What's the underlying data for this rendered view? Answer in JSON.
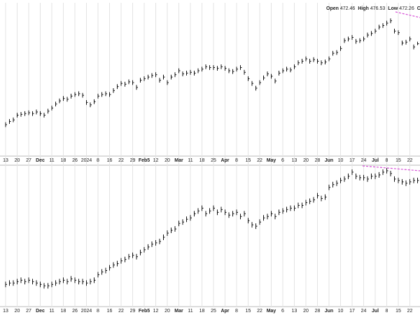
{
  "chart_data": [
    {
      "type": "ohlc",
      "header": [
        {
          "label": "Open",
          "value": 472.46
        },
        {
          "label": "High",
          "value": 476.53
        },
        {
          "label": "Low",
          "value": 472.26
        },
        {
          "label": "Close"
        }
      ],
      "categories": [
        "13",
        null,
        null,
        "20",
        null,
        null,
        "27",
        null,
        null,
        "Dec",
        null,
        null,
        "11",
        null,
        null,
        "18",
        null,
        null,
        "26",
        null,
        null,
        "2024",
        null,
        null,
        "8",
        null,
        null,
        "16",
        null,
        null,
        "22",
        null,
        null,
        "29",
        null,
        null,
        "Feb5",
        null,
        null,
        "12",
        null,
        null,
        "20",
        null,
        null,
        "Mar",
        null,
        null,
        "11",
        null,
        null,
        "18",
        null,
        null,
        "25",
        null,
        null,
        "Apr",
        null,
        null,
        "8",
        null,
        null,
        "15",
        null,
        null,
        "22",
        null,
        null,
        "May",
        null,
        null,
        "6",
        null,
        null,
        "13",
        null,
        null,
        "20",
        null,
        null,
        "28",
        null,
        null,
        "Jun",
        null,
        null,
        "10",
        null,
        null,
        "17",
        null,
        null,
        "24",
        null,
        null,
        "Jul",
        null,
        null,
        "8",
        null,
        null,
        "15",
        null,
        null,
        "22",
        null,
        null
      ],
      "high": [
        375,
        379,
        381,
        387,
        388,
        389,
        390,
        389,
        391,
        389,
        387,
        392,
        396,
        401,
        405,
        408,
        407,
        411,
        413,
        414,
        412,
        403,
        400,
        404,
        411,
        413,
        414,
        413,
        418,
        423,
        427,
        426,
        429,
        428,
        422,
        431,
        433,
        435,
        437,
        438,
        431,
        435,
        428,
        435,
        438,
        443,
        439,
        440,
        441,
        440,
        443,
        445,
        448,
        447,
        447,
        446,
        448,
        446,
        443,
        442,
        445,
        447,
        441,
        433,
        427,
        421,
        428,
        434,
        439,
        436,
        430,
        440,
        443,
        445,
        444,
        448,
        453,
        455,
        458,
        455,
        457,
        455,
        453,
        454,
        458,
        465,
        466,
        471,
        481,
        483,
        485,
        480,
        481,
        483,
        488,
        490,
        493,
        498,
        500,
        503,
        506,
        493,
        491,
        478,
        479,
        483,
        473,
        476.53
      ],
      "low": [
        369,
        373,
        375,
        381,
        382,
        383,
        384,
        383,
        385,
        383,
        381,
        386,
        390,
        395,
        399,
        402,
        401,
        405,
        407,
        408,
        406,
        397,
        394,
        398,
        405,
        407,
        408,
        407,
        412,
        417,
        421,
        420,
        423,
        422,
        416,
        425,
        427,
        429,
        431,
        432,
        425,
        429,
        422,
        429,
        432,
        437,
        433,
        434,
        435,
        434,
        437,
        439,
        442,
        441,
        441,
        440,
        442,
        440,
        437,
        436,
        439,
        441,
        435,
        427,
        421,
        415,
        422,
        428,
        433,
        430,
        424,
        434,
        437,
        439,
        438,
        442,
        447,
        449,
        452,
        449,
        451,
        449,
        447,
        448,
        452,
        459,
        460,
        465,
        475,
        477,
        479,
        474,
        475,
        477,
        482,
        484,
        487,
        492,
        494,
        497,
        500,
        487,
        485,
        472,
        473,
        477,
        467,
        472.26
      ],
      "close": [
        372,
        376,
        378,
        384,
        385,
        386,
        387,
        386,
        388,
        386,
        384,
        389,
        393,
        398,
        402,
        405,
        404,
        408,
        410,
        411,
        409,
        400,
        397,
        401,
        408,
        410,
        411,
        410,
        415,
        420,
        424,
        423,
        426,
        425,
        419,
        428,
        430,
        432,
        434,
        435,
        428,
        432,
        425,
        432,
        435,
        440,
        436,
        437,
        438,
        437,
        440,
        442,
        445,
        444,
        444,
        443,
        445,
        443,
        440,
        439,
        442,
        444,
        438,
        430,
        424,
        418,
        425,
        431,
        436,
        433,
        427,
        437,
        440,
        442,
        441,
        445,
        450,
        452,
        455,
        452,
        454,
        452,
        450,
        451,
        455,
        462,
        463,
        468,
        478,
        480,
        482,
        477,
        478,
        480,
        485,
        487,
        490,
        495,
        497,
        500,
        503,
        490,
        488,
        475,
        476,
        480,
        470,
        474
      ],
      "ylim": [
        335,
        508
      ],
      "color": "#111111",
      "grid": true
    },
    {
      "type": "ohlc",
      "categories": [
        "13",
        null,
        null,
        "20",
        null,
        null,
        "27",
        null,
        null,
        "Dec",
        null,
        null,
        "11",
        null,
        null,
        "18",
        null,
        null,
        "26",
        null,
        null,
        "2024",
        null,
        null,
        "8",
        null,
        null,
        "16",
        null,
        null,
        "22",
        null,
        null,
        "29",
        null,
        null,
        "Feb5",
        null,
        null,
        "12",
        null,
        null,
        "20",
        null,
        null,
        "Mar",
        null,
        null,
        "11",
        null,
        null,
        "18",
        null,
        null,
        "25",
        null,
        null,
        "Apr",
        null,
        null,
        "8",
        null,
        null,
        "15",
        null,
        null,
        "22",
        null,
        null,
        "May",
        null,
        null,
        "6",
        null,
        null,
        "13",
        null,
        null,
        "20",
        null,
        null,
        "28",
        null,
        null,
        "Jun",
        null,
        null,
        "10",
        null,
        null,
        "17",
        null,
        null,
        "24",
        null,
        null,
        "Jul",
        null,
        null,
        "8",
        null,
        null,
        "15",
        null,
        null,
        "22",
        null,
        null
      ],
      "high": [
        57,
        58,
        58,
        59,
        60,
        59,
        60,
        59,
        58,
        57,
        56,
        56,
        57,
        58,
        59,
        60,
        59,
        61,
        60,
        59,
        59,
        58,
        59,
        60,
        64,
        66,
        67,
        69,
        71,
        72,
        74,
        75,
        77,
        78,
        77,
        80,
        82,
        84,
        86,
        87,
        88,
        91,
        94,
        96,
        97,
        101,
        102,
        104,
        105,
        108,
        110,
        112,
        108,
        110,
        112,
        109,
        111,
        109,
        107,
        108,
        109,
        106,
        108,
        103,
        100,
        99,
        102,
        105,
        106,
        108,
        106,
        109,
        110,
        111,
        112,
        112,
        114,
        114,
        116,
        117,
        118,
        121,
        119,
        120,
        127,
        129,
        130,
        132,
        133,
        135,
        138,
        135,
        134,
        134,
        133,
        135,
        135,
        136,
        138,
        139,
        137,
        133,
        132,
        131,
        130,
        131,
        132,
        132
      ],
      "low": [
        53,
        54,
        54,
        55,
        56,
        55,
        56,
        55,
        54,
        53,
        52,
        52,
        53,
        54,
        55,
        56,
        55,
        57,
        56,
        55,
        55,
        54,
        55,
        56,
        60,
        62,
        63,
        65,
        67,
        68,
        70,
        71,
        73,
        74,
        73,
        76,
        78,
        80,
        82,
        83,
        84,
        87,
        90,
        92,
        93,
        97,
        98,
        100,
        101,
        104,
        106,
        108,
        104,
        106,
        108,
        105,
        107,
        105,
        103,
        104,
        105,
        102,
        104,
        99,
        96,
        95,
        98,
        101,
        102,
        104,
        102,
        105,
        106,
        107,
        108,
        108,
        110,
        110,
        112,
        113,
        114,
        117,
        115,
        116,
        123,
        125,
        126,
        128,
        129,
        131,
        134,
        131,
        130,
        130,
        129,
        131,
        131,
        132,
        134,
        135,
        133,
        129,
        128,
        127,
        126,
        127,
        128,
        128
      ],
      "close": [
        55,
        56,
        56,
        57,
        58,
        57,
        58,
        57,
        56,
        55,
        54,
        54,
        55,
        56,
        57,
        58,
        57,
        59,
        58,
        57,
        57,
        56,
        57,
        58,
        62,
        64,
        65,
        67,
        69,
        70,
        72,
        73,
        75,
        76,
        75,
        78,
        80,
        82,
        84,
        85,
        86,
        89,
        92,
        94,
        95,
        99,
        100,
        102,
        103,
        106,
        108,
        110,
        106,
        108,
        110,
        107,
        109,
        107,
        105,
        106,
        107,
        104,
        106,
        101,
        98,
        97,
        100,
        103,
        104,
        106,
        104,
        107,
        108,
        109,
        110,
        110,
        112,
        112,
        114,
        115,
        116,
        119,
        117,
        118,
        125,
        127,
        128,
        130,
        131,
        133,
        136,
        133,
        132,
        132,
        131,
        133,
        133,
        134,
        136,
        137,
        135,
        131,
        130,
        129,
        128,
        129,
        130,
        130
      ],
      "ylim": [
        40,
        140
      ],
      "color": "#111111",
      "grid": true
    }
  ]
}
